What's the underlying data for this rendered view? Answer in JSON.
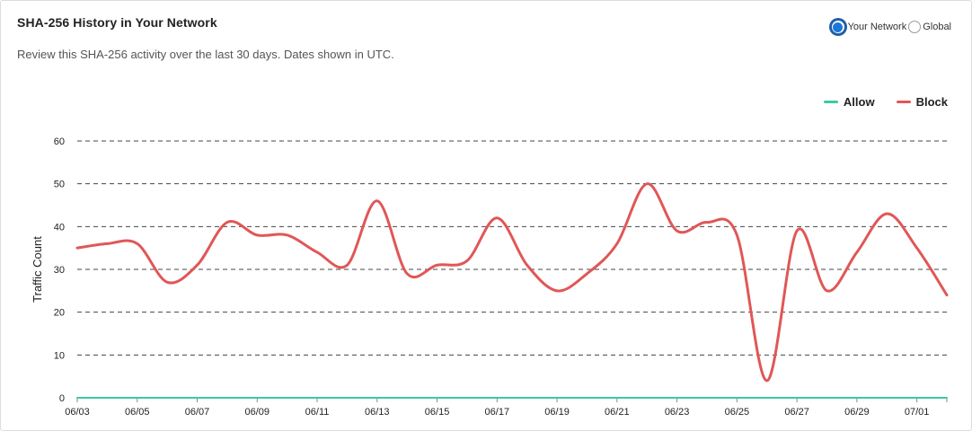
{
  "header": {
    "title": "SHA-256 History in Your Network",
    "subtitle": "Review this SHA-256 activity over the last 30 days. Dates shown in UTC."
  },
  "scope_toggle": {
    "options": [
      {
        "label": "Your Network",
        "selected": true
      },
      {
        "label": "Global",
        "selected": false
      }
    ]
  },
  "legend": {
    "items": [
      {
        "label": "Allow",
        "color": "#3cc9a6"
      },
      {
        "label": "Block",
        "color": "#e05757"
      }
    ]
  },
  "chart_data": {
    "type": "line",
    "title": "",
    "xlabel": "",
    "ylabel": "Traffic Count",
    "ylim": [
      0,
      60
    ],
    "yticks": [
      0,
      10,
      20,
      30,
      40,
      50,
      60
    ],
    "grid": true,
    "grid_style": "dashed",
    "legend_position": "top-right",
    "x_tick_labels": [
      "06/03",
      "06/05",
      "06/07",
      "06/09",
      "06/11",
      "06/13",
      "06/15",
      "06/17",
      "06/19",
      "06/21",
      "06/23",
      "06/25",
      "06/27",
      "06/29",
      "07/01"
    ],
    "x": [
      "06/03",
      "06/04",
      "06/05",
      "06/06",
      "06/07",
      "06/08",
      "06/09",
      "06/10",
      "06/11",
      "06/12",
      "06/13",
      "06/14",
      "06/15",
      "06/16",
      "06/17",
      "06/18",
      "06/19",
      "06/20",
      "06/21",
      "06/22",
      "06/23",
      "06/24",
      "06/25",
      "06/26",
      "06/27",
      "06/28",
      "06/29",
      "06/30",
      "07/01",
      "07/02"
    ],
    "series": [
      {
        "name": "Allow",
        "color": "#3cc9a6",
        "values": [
          0,
          0,
          0,
          0,
          0,
          0,
          0,
          0,
          0,
          0,
          0,
          0,
          0,
          0,
          0,
          0,
          0,
          0,
          0,
          0,
          0,
          0,
          0,
          0,
          0,
          0,
          0,
          0,
          0,
          0
        ]
      },
      {
        "name": "Block",
        "color": "#e05757",
        "values": [
          35,
          36,
          36,
          27,
          31,
          41,
          38,
          38,
          34,
          31,
          46,
          29,
          31,
          32,
          42,
          31,
          25,
          29,
          36,
          50,
          39,
          41,
          38,
          4,
          39,
          25,
          34,
          43,
          35,
          24
        ]
      }
    ]
  }
}
